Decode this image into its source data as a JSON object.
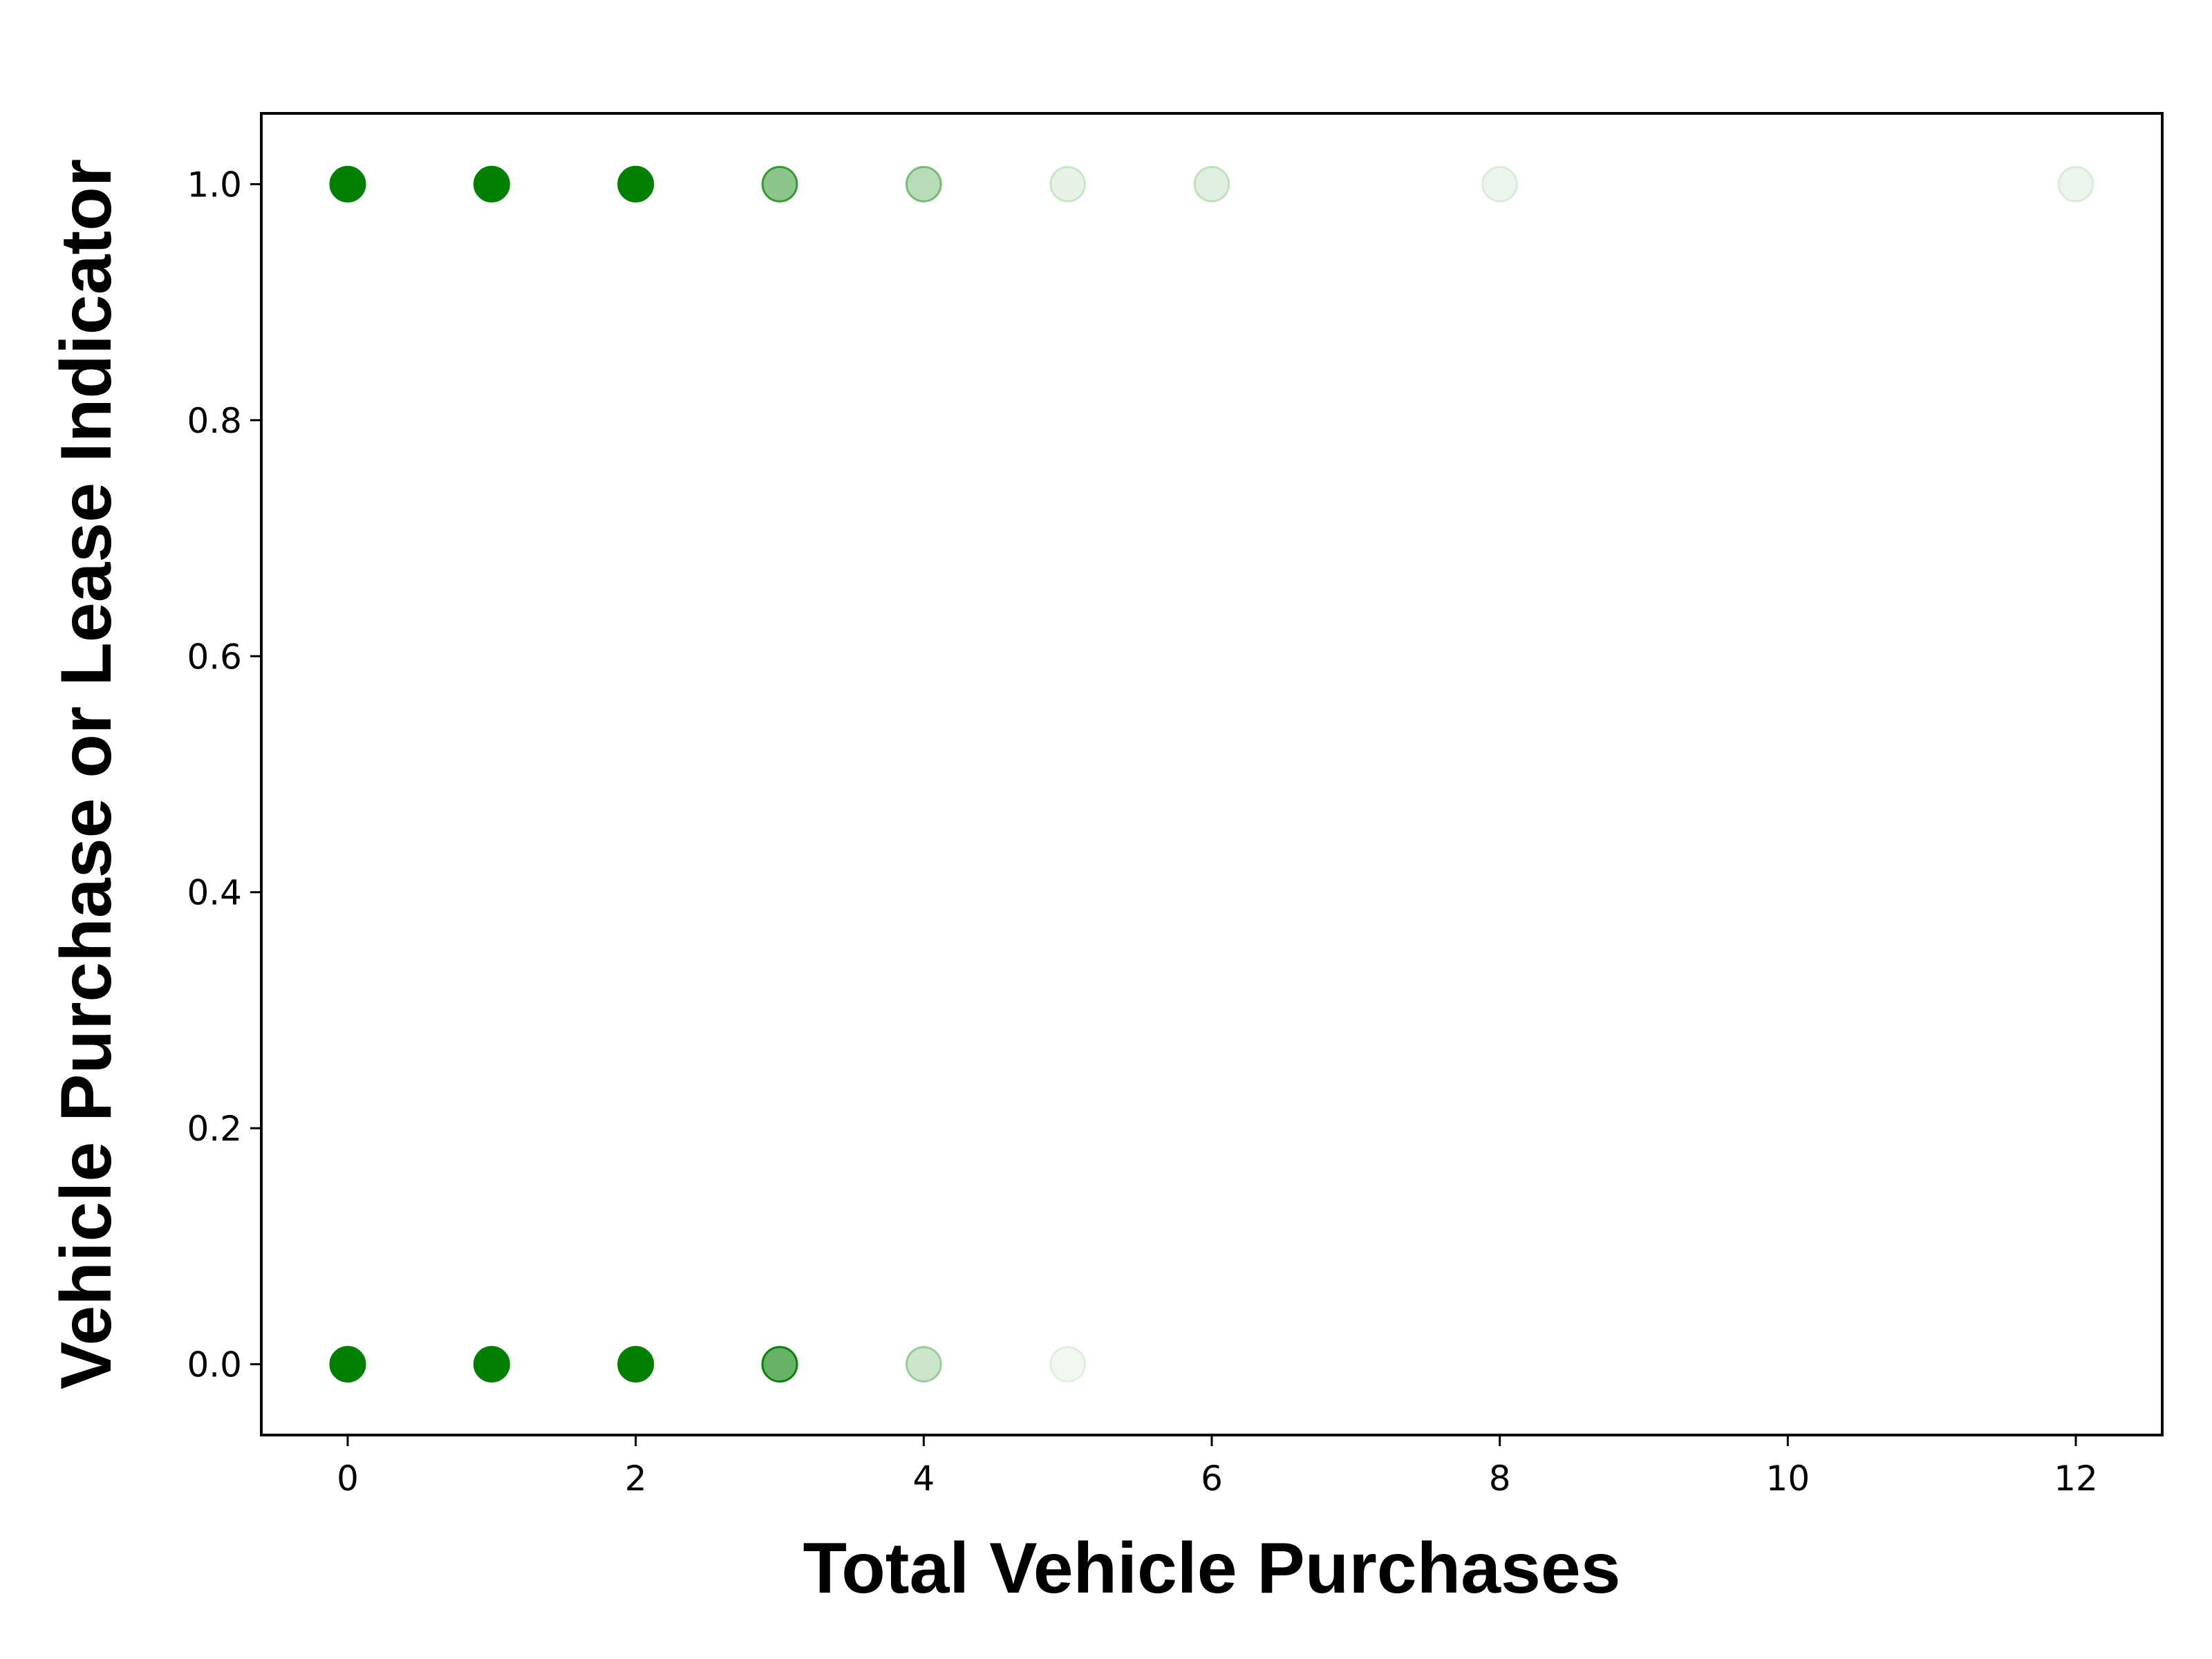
{
  "chart_data": {
    "type": "scatter",
    "xlabel": "Total Vehicle Purchases",
    "ylabel": "Vehicle Purchase or Lease Indicator",
    "xlim": [
      -0.6,
      12.6
    ],
    "ylim": [
      -0.06,
      1.06
    ],
    "x_ticks": [
      0,
      2,
      4,
      6,
      8,
      10,
      12
    ],
    "y_ticks": [
      0.0,
      0.2,
      0.4,
      0.6,
      0.8,
      1.0
    ],
    "x_tick_labels": [
      "0",
      "2",
      "4",
      "6",
      "8",
      "10",
      "12"
    ],
    "y_tick_labels": [
      "0.0",
      "0.2",
      "0.4",
      "0.6",
      "0.8",
      "1.0"
    ],
    "grid": false,
    "marker_color": "#008000",
    "points": [
      {
        "x": 0,
        "y": 1,
        "opacity": 1.0
      },
      {
        "x": 1,
        "y": 1,
        "opacity": 1.0
      },
      {
        "x": 2,
        "y": 1,
        "opacity": 1.0
      },
      {
        "x": 3,
        "y": 1,
        "opacity": 0.45
      },
      {
        "x": 4,
        "y": 1,
        "opacity": 0.28
      },
      {
        "x": 5,
        "y": 1,
        "opacity": 0.1
      },
      {
        "x": 6,
        "y": 1,
        "opacity": 0.12
      },
      {
        "x": 8,
        "y": 1,
        "opacity": 0.07
      },
      {
        "x": 12,
        "y": 1,
        "opacity": 0.07
      },
      {
        "x": 0,
        "y": 0,
        "opacity": 1.0
      },
      {
        "x": 1,
        "y": 0,
        "opacity": 1.0
      },
      {
        "x": 2,
        "y": 0,
        "opacity": 1.0
      },
      {
        "x": 3,
        "y": 0,
        "opacity": 0.6
      },
      {
        "x": 4,
        "y": 0,
        "opacity": 0.2
      },
      {
        "x": 5,
        "y": 0,
        "opacity": 0.06
      }
    ]
  }
}
